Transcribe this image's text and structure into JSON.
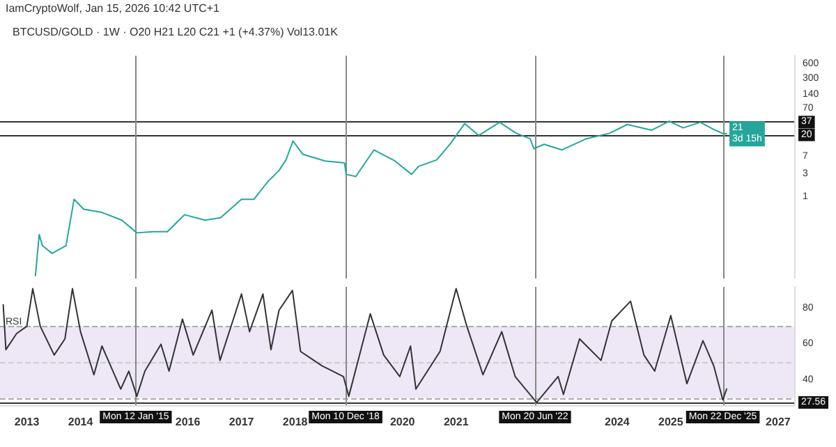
{
  "chart_data": [
    {
      "type": "line",
      "title": "BTCUSD/GOLD · 1W · O20 H21 L20 C21 +1 (+4.37%) Vol13.01K",
      "annotations": [
        "IamCryptoWolf, Jan 15, 2026 10:42 UTC+1",
        {
          "text": "21\n3d 15h",
          "x": 2026.04,
          "y": 21
        }
      ],
      "x": [
        2013.16,
        2013.23,
        2013.29,
        2013.47,
        2013.73,
        2013.88,
        2014.06,
        2014.4,
        2014.77,
        2015.05,
        2015.36,
        2015.62,
        2015.94,
        2016.32,
        2016.61,
        2017.0,
        2017.23,
        2017.49,
        2017.7,
        2017.83,
        2017.96,
        2018.14,
        2018.56,
        2018.92,
        2018.95,
        2019.13,
        2019.47,
        2019.86,
        2020.17,
        2020.3,
        2020.64,
        2020.9,
        2021.16,
        2021.42,
        2021.81,
        2022.12,
        2022.38,
        2022.45,
        2022.64,
        2022.97,
        2023.42,
        2023.86,
        2024.19,
        2024.64,
        2024.97,
        2025.23,
        2025.55,
        2025.83,
        2025.96,
        2026.04
      ],
      "series": [
        {
          "color": "#26a69a",
          "values": [
            0.023,
            0.166,
            0.097,
            0.067,
            0.097,
            0.9,
            0.56,
            0.48,
            0.33,
            0.18,
            0.19,
            0.19,
            0.43,
            0.33,
            0.37,
            0.9,
            0.9,
            2.1,
            3.6,
            6.0,
            14.9,
            7.9,
            5.7,
            5.2,
            3.0,
            2.7,
            9.7,
            5.7,
            3.0,
            4.4,
            6.0,
            13.4,
            34.5,
            19.4,
            36.6,
            21.6,
            16.5,
            10.3,
            12.7,
            9.7,
            16.5,
            21.6,
            33,
            25,
            38.5,
            28,
            36.6,
            25,
            21.6,
            21
          ]
        }
      ],
      "log": "y",
      "xlim": [
        2012.5,
        2027.3
      ],
      "ylim": [
        0.02,
        900
      ],
      "yticks": [
        1,
        3,
        7,
        70,
        140,
        300,
        600
      ],
      "tick_labels": "y",
      "grid": false,
      "marker": "none",
      "line_style": "solid",
      "ref_lines": [
        {
          "axis": "y",
          "value": 37,
          "label": "37",
          "color": "#333333"
        },
        {
          "axis": "y",
          "value": 20,
          "label": "20",
          "color": "#333333"
        },
        {
          "axis": "x",
          "value": 2015.03,
          "color": "#888888"
        },
        {
          "axis": "x",
          "value": 2018.94,
          "color": "#888888"
        },
        {
          "axis": "x",
          "value": 2022.47,
          "color": "#888888"
        },
        {
          "axis": "x",
          "value": 2025.97,
          "color": "#888888"
        }
      ]
    },
    {
      "type": "line",
      "ylabel": "RSI",
      "x": [
        2012.56,
        2012.61,
        2012.81,
        2013.0,
        2013.11,
        2013.25,
        2013.51,
        2013.71,
        2013.85,
        2014.0,
        2014.25,
        2014.4,
        2014.75,
        2014.9,
        2015.05,
        2015.2,
        2015.5,
        2015.65,
        2015.9,
        2016.1,
        2016.45,
        2016.6,
        2017.0,
        2017.15,
        2017.4,
        2017.55,
        2017.7,
        2017.95,
        2018.1,
        2018.5,
        2018.9,
        2019.0,
        2019.4,
        2019.65,
        2019.95,
        2020.15,
        2020.25,
        2020.7,
        2021.0,
        2021.2,
        2021.5,
        2021.85,
        2022.1,
        2022.5,
        2022.9,
        2023.0,
        2023.3,
        2023.7,
        2023.9,
        2024.25,
        2024.5,
        2024.7,
        2025.0,
        2025.3,
        2025.6,
        2025.8,
        2025.97,
        2026.04
      ],
      "series": [
        {
          "color": "#333333",
          "values": [
            82,
            57,
            66,
            70,
            91,
            70,
            54,
            63,
            91,
            67,
            43,
            59,
            35,
            45,
            31,
            45,
            60,
            45,
            74,
            54,
            79,
            51,
            88,
            67,
            88,
            57,
            79,
            90,
            56,
            48,
            42,
            31,
            77,
            54,
            42,
            59,
            35,
            56,
            91,
            70,
            43,
            67,
            42,
            27.5,
            42,
            32,
            63,
            51,
            73,
            84,
            54,
            45,
            76,
            38,
            62,
            48,
            29,
            35
          ]
        }
      ],
      "xlim": [
        2012.5,
        2027.3
      ],
      "ylim": [
        26,
        92
      ],
      "yticks": [
        40,
        60,
        80
      ],
      "xticks": [
        2013,
        2014,
        2016,
        2017,
        2018,
        2020,
        2021,
        2024,
        2025,
        2027
      ],
      "grid": false,
      "marker": "none",
      "line_style": "solid",
      "bands": [
        {
          "axis": "y",
          "from": 30,
          "to": 70,
          "color": "#ede7f6"
        }
      ],
      "ref_lines": [
        {
          "axis": "y",
          "value": 70,
          "color": "#aaaaaa",
          "line_style": "dashed"
        },
        {
          "axis": "y",
          "value": 50,
          "color": "#cccccc",
          "line_style": "dashed"
        },
        {
          "axis": "y",
          "value": 30,
          "color": "#aaaaaa",
          "line_style": "dashed"
        },
        {
          "axis": "y",
          "value": 27.56,
          "label": "27.56",
          "color": "#333333"
        },
        {
          "axis": "x",
          "value": 2015.03,
          "label": "Mon 12 Jan '15",
          "color": "#888888"
        },
        {
          "axis": "x",
          "value": 2018.94,
          "label": "Mon 10 Dec '18",
          "color": "#888888"
        },
        {
          "axis": "x",
          "value": 2022.47,
          "label": "Mon 20 Jun '22",
          "color": "#888888"
        },
        {
          "axis": "x",
          "value": 2025.97,
          "label": "Mon 22 Dec '25",
          "color": "#888888"
        }
      ]
    }
  ]
}
